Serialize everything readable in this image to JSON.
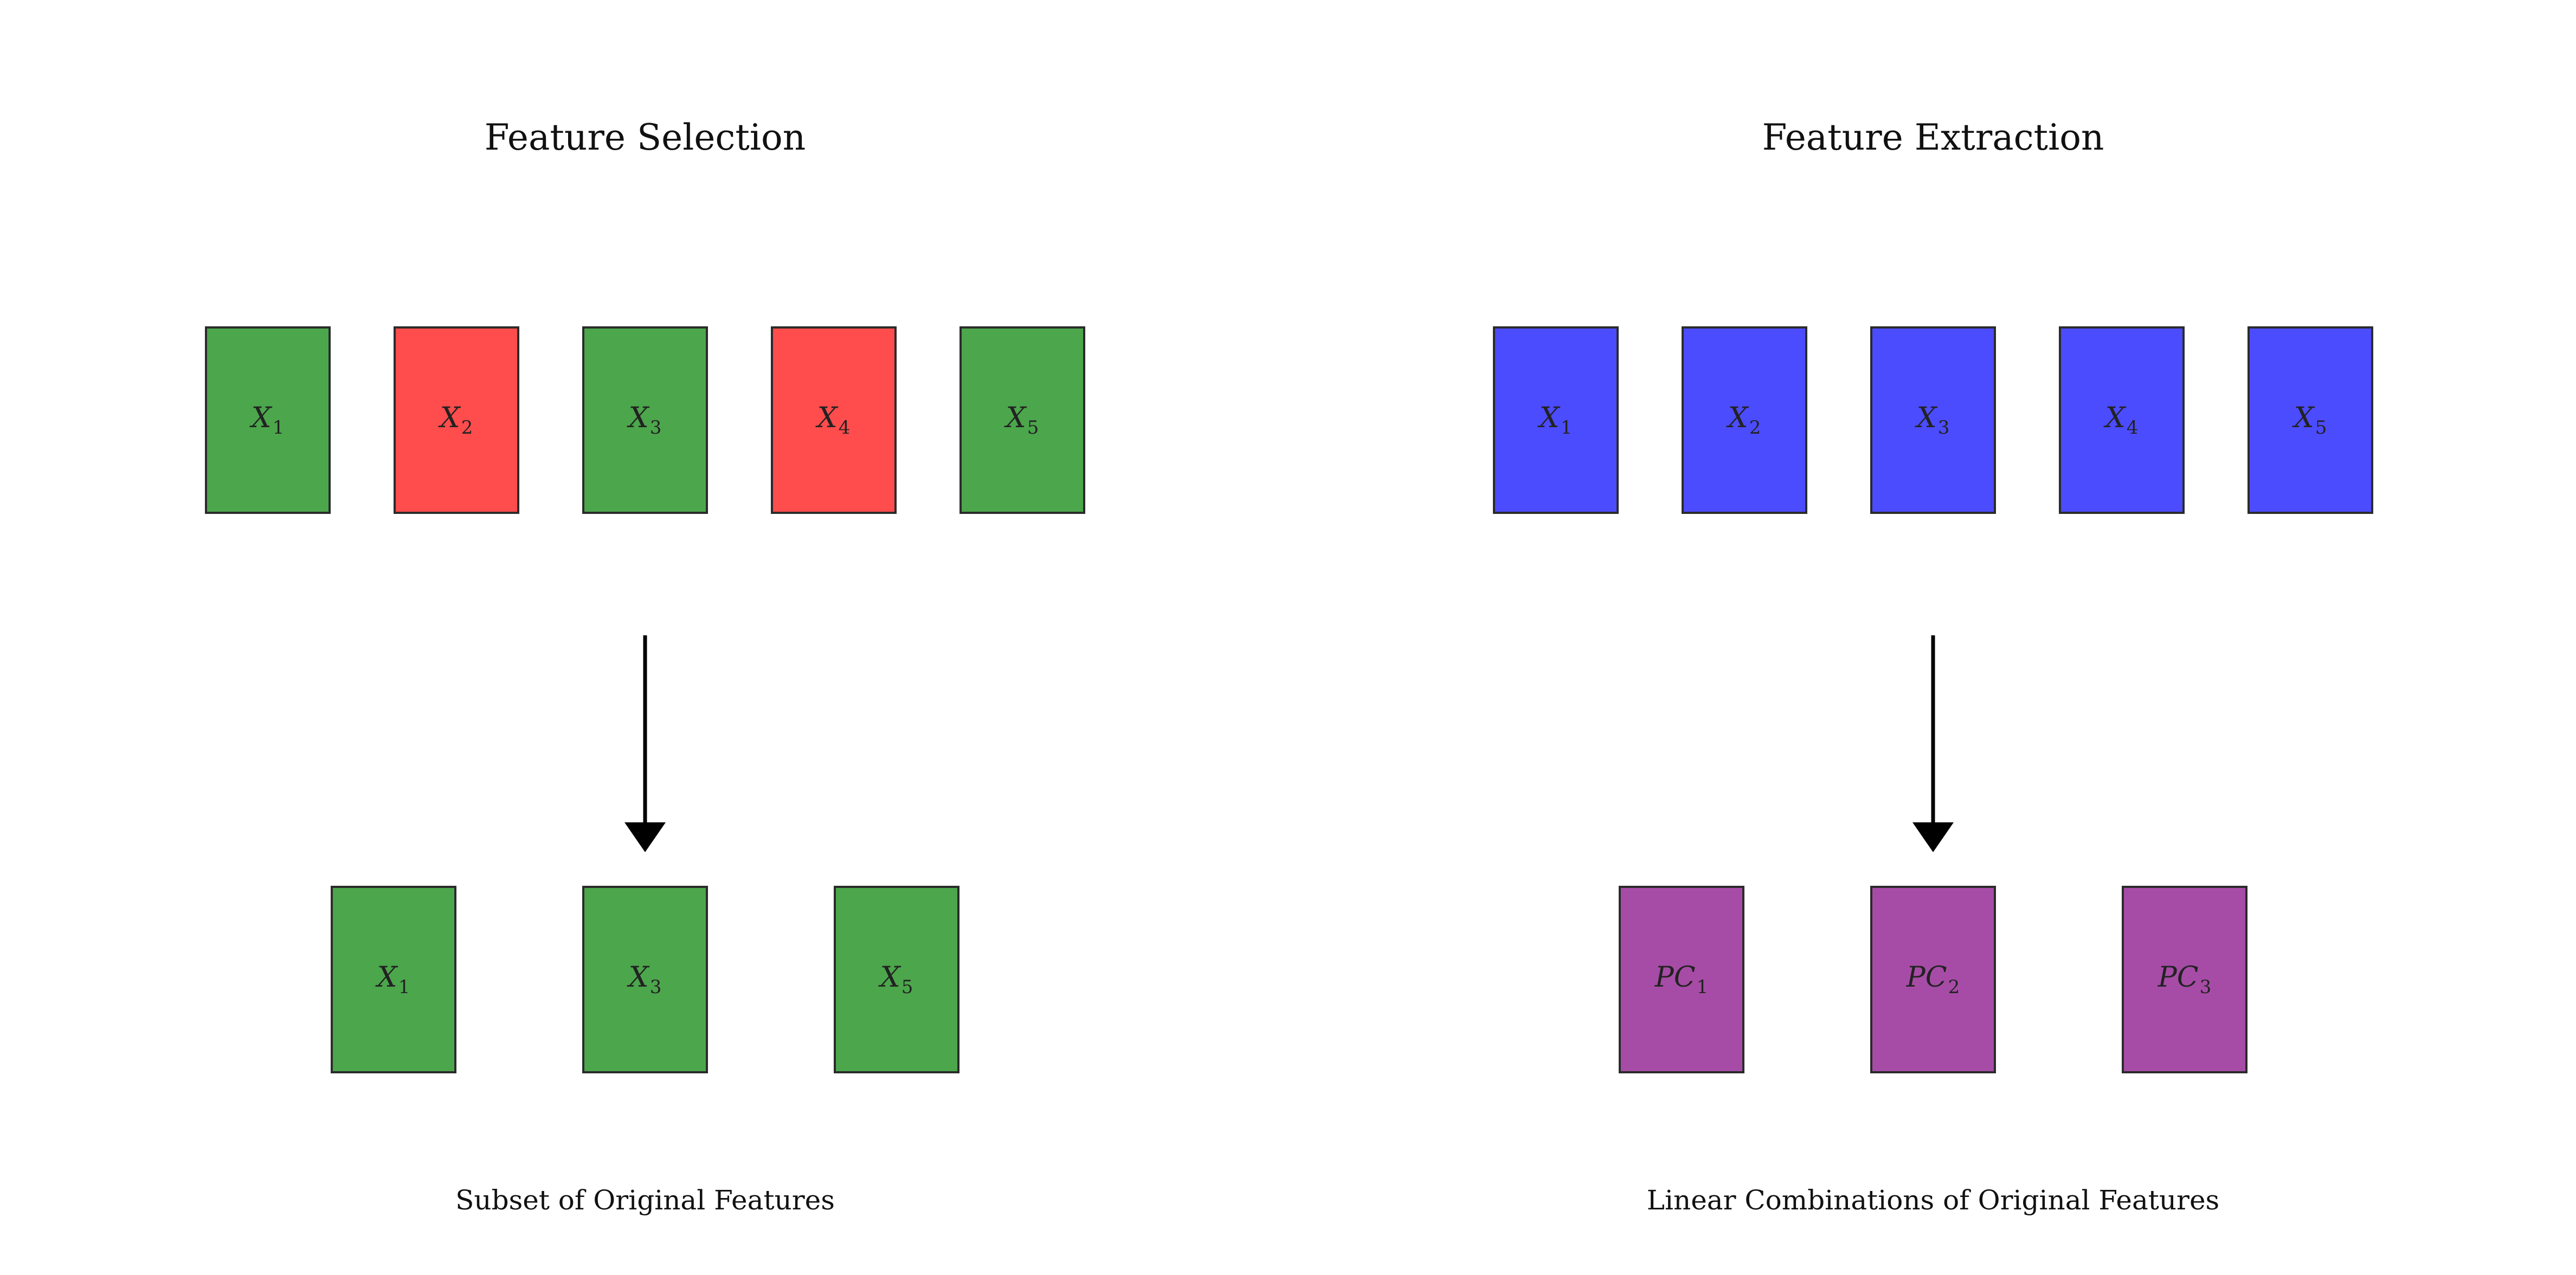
{
  "panels": [
    {
      "id": "selection",
      "title": "Feature Selection",
      "caption": "Subset of Original Features",
      "input_features": [
        {
          "letter": "X",
          "sub": "1",
          "status": "kept",
          "color": "#4ca64c"
        },
        {
          "letter": "X",
          "sub": "2",
          "status": "dropped",
          "color": "#ff4c4c"
        },
        {
          "letter": "X",
          "sub": "3",
          "status": "kept",
          "color": "#4ca64c"
        },
        {
          "letter": "X",
          "sub": "4",
          "status": "dropped",
          "color": "#ff4c4c"
        },
        {
          "letter": "X",
          "sub": "5",
          "status": "kept",
          "color": "#4ca64c"
        }
      ],
      "output_features": [
        {
          "letter": "X",
          "sub": "1",
          "color": "#4ca64c"
        },
        {
          "letter": "X",
          "sub": "3",
          "color": "#4ca64c"
        },
        {
          "letter": "X",
          "sub": "5",
          "color": "#4ca64c"
        }
      ]
    },
    {
      "id": "extraction",
      "title": "Feature Extraction",
      "caption": "Linear Combinations of Original Features",
      "input_features": [
        {
          "letter": "X",
          "sub": "1",
          "color": "#4c4cff"
        },
        {
          "letter": "X",
          "sub": "2",
          "color": "#4c4cff"
        },
        {
          "letter": "X",
          "sub": "3",
          "color": "#4c4cff"
        },
        {
          "letter": "X",
          "sub": "4",
          "color": "#4c4cff"
        },
        {
          "letter": "X",
          "sub": "5",
          "color": "#4c4cff"
        }
      ],
      "output_features": [
        {
          "letter": "PC",
          "sub": "1",
          "color": "#a64ca6"
        },
        {
          "letter": "PC",
          "sub": "2",
          "color": "#a64ca6"
        },
        {
          "letter": "PC",
          "sub": "3",
          "color": "#a64ca6"
        }
      ]
    }
  ],
  "colors": {
    "kept": "#4ca64c",
    "dropped": "#ff4c4c",
    "original": "#4c4cff",
    "component": "#a64ca6",
    "border": "#2b2b2b",
    "arrow": "#000000"
  }
}
